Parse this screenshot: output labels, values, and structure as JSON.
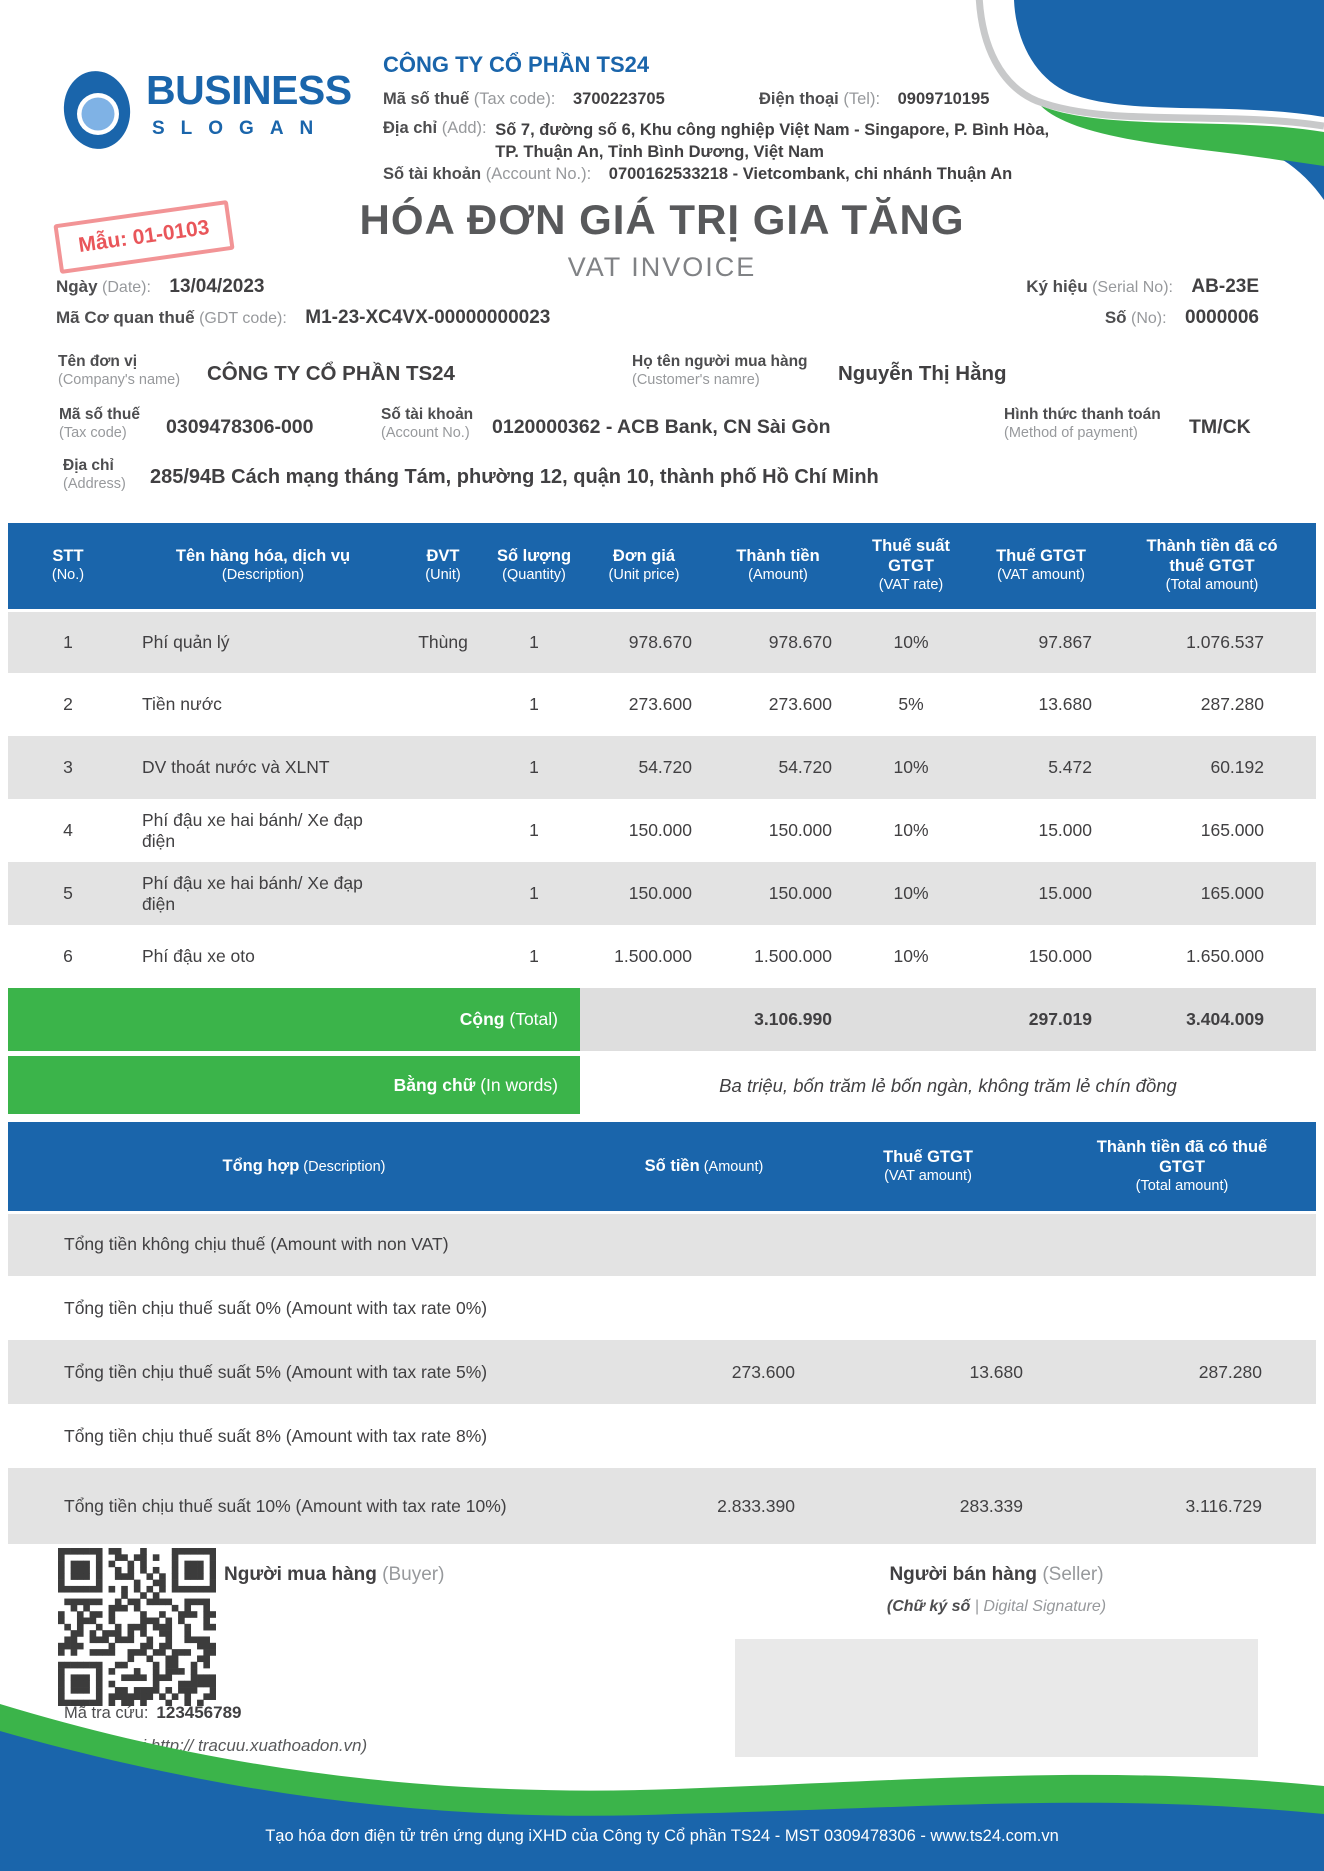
{
  "colors": {
    "brand_blue": "#1a65ab",
    "green": "#3bb44a",
    "row_gray": "#e3e3e3",
    "stamp_red": "#e9565a",
    "logo_inner_blue": "#7fb2e5",
    "curve_gray": "#c8c9ca"
  },
  "logo": {
    "name": "BUSINESS",
    "slogan": "SLOGAN"
  },
  "stamp": {
    "text": "Mẫu: 01-0103"
  },
  "seller_header": {
    "company": "CÔNG TY CỔ PHẦN TS24",
    "tax": {
      "vi": "Mã số thuế",
      "en": "(Tax code):",
      "value": "3700223705"
    },
    "tel": {
      "vi": "Điện thoại",
      "en": "(Tel):",
      "value": "0909710195"
    },
    "addr": {
      "vi": "Địa chỉ",
      "en": "(Add):",
      "value1": "Số 7, đường số 6, Khu công nghiệp Việt Nam - Singapore, P. Bình Hòa,",
      "value2": "TP. Thuận An, Tỉnh Bình Dương, Việt Nam"
    },
    "account": {
      "vi": "Số tài khoản",
      "en": "(Account No.):",
      "value": "0700162533218 - Vietcombank, chi nhánh Thuận An"
    }
  },
  "title": {
    "vi": "HÓA ĐƠN GIÁ TRỊ GIA TĂNG",
    "en": "VAT INVOICE"
  },
  "meta": {
    "date": {
      "vi": "Ngày",
      "en": "(Date):",
      "value": "13/04/2023"
    },
    "serial": {
      "vi": "Ký hiệu",
      "en": "(Serial No):",
      "value": "AB-23E"
    },
    "gdt": {
      "vi": "Mã Cơ quan thuế",
      "en": "(GDT code):",
      "value": "M1-23-XC4VX-00000000023"
    },
    "number": {
      "vi": "Số",
      "en": "(No):",
      "value": "0000006"
    }
  },
  "buyer": {
    "company": {
      "vi": "Tên đơn vị",
      "en": "(Company's name)",
      "value": "CÔNG TY CỔ PHẦN TS24"
    },
    "customer": {
      "vi": "Họ tên người mua hàng",
      "en": "(Customer's namre)",
      "value": "Nguyễn Thị Hằng"
    },
    "tax": {
      "vi": "Mã số thuế",
      "en": "(Tax code)",
      "value": "0309478306-000"
    },
    "account": {
      "vi": "Số tài khoản",
      "en": "(Account No.)",
      "value": "0120000362 - ACB Bank, CN Sài Gòn"
    },
    "payment": {
      "vi": "Hình thức thanh toán",
      "en": "(Method of payment)",
      "value": "TM/CK"
    },
    "address": {
      "vi": "Địa chỉ",
      "en": "(Address)",
      "value": "285/94B Cách mạng tháng Tám, phường 12, quận 10, thành phố Hồ Chí Minh"
    }
  },
  "items_table": {
    "headers": [
      {
        "vi": "STT",
        "en": "(No.)"
      },
      {
        "vi": "Tên hàng hóa, dịch vụ",
        "en": "(Description)"
      },
      {
        "vi": "ĐVT",
        "en": "(Unit)"
      },
      {
        "vi": "Số lượng",
        "en": "(Quantity)"
      },
      {
        "vi": "Đơn giá",
        "en": "(Unit price)"
      },
      {
        "vi": "Thành tiền",
        "en": "(Amount)"
      },
      {
        "vi": "Thuế suất GTGT",
        "en": "(VAT rate)"
      },
      {
        "vi": "Thuế GTGT",
        "en": "(VAT amount)"
      },
      {
        "vi": "Thành tiền đã có thuế GTGT",
        "en": "(Total amount)"
      }
    ],
    "rows": [
      [
        "1",
        "Phí quản lý",
        "Thùng",
        "1",
        "978.670",
        "978.670",
        "10%",
        "97.867",
        "1.076.537"
      ],
      [
        "2",
        "Tiền nước",
        "",
        "1",
        "273.600",
        "273.600",
        "5%",
        "13.680",
        "287.280"
      ],
      [
        "3",
        "DV thoát nước và XLNT",
        "",
        "1",
        "54.720",
        "54.720",
        "10%",
        "5.472",
        "60.192"
      ],
      [
        "4",
        "Phí đậu xe hai bánh/ Xe đạp điện",
        "",
        "1",
        "150.000",
        "150.000",
        "10%",
        "15.000",
        "165.000"
      ],
      [
        "5",
        "Phí đậu xe hai bánh/ Xe đạp điện",
        "",
        "1",
        "150.000",
        "150.000",
        "10%",
        "15.000",
        "165.000"
      ],
      [
        "6",
        "Phí đậu xe oto",
        "",
        "1",
        "1.500.000",
        "1.500.000",
        "10%",
        "150.000",
        "1.650.000"
      ]
    ],
    "total": {
      "label_vi": "Cộng",
      "label_en": "(Total)",
      "amount": "3.106.990",
      "vat": "297.019",
      "total": "3.404.009"
    },
    "in_words": {
      "label_vi": "Bằng chữ",
      "label_en": "(In words)",
      "text": "Ba triệu, bốn trăm lẻ bốn ngàn, không trăm lẻ chín đồng"
    }
  },
  "summary_table": {
    "headers": [
      {
        "vi": "Tổng hợp",
        "en": "(Description)"
      },
      {
        "vi": "Số tiền",
        "en": "(Amount)"
      },
      {
        "vi": "Thuế GTGT",
        "en": "(VAT amount)"
      },
      {
        "vi": "Thành tiền đã có thuế GTGT",
        "en": "(Total amount)"
      }
    ],
    "rows": [
      [
        "Tổng tiền không chịu thuế (Amount with non VAT)",
        "",
        "",
        ""
      ],
      [
        "Tổng tiền chịu thuế suất 0% (Amount with tax rate 0%)",
        "",
        "",
        ""
      ],
      [
        "Tổng tiền chịu thuế suất 5% (Amount with tax rate 5%)",
        "273.600",
        "13.680",
        "287.280"
      ],
      [
        "Tổng tiền chịu thuế suất 8% (Amount with tax rate 8%)",
        "",
        "",
        ""
      ],
      [
        "Tổng tiền chịu thuế suất 10% (Amount with tax rate 10%)",
        "2.833.390",
        "283.339",
        "3.116.729"
      ]
    ]
  },
  "signatures": {
    "buyer": {
      "vi": "Người mua hàng",
      "en": "(Buyer)"
    },
    "seller": {
      "vi": "Người bán hàng",
      "en": "(Seller)",
      "digital_vi": "(Chữ ký số",
      "digital_en": "| Digital Signature)"
    }
  },
  "lookup": {
    "code_label": "Mã tra cứu:",
    "code": "123456789",
    "note": "(Tra cứu tại http:// tracuu.xuathoadon.vn)"
  },
  "footer": {
    "note": "Tạo hóa đơn điện tử trên ứng dụng iXHD của Công ty Cổ phần TS24 - MST 0309478306 - www.ts24.com.vn"
  }
}
